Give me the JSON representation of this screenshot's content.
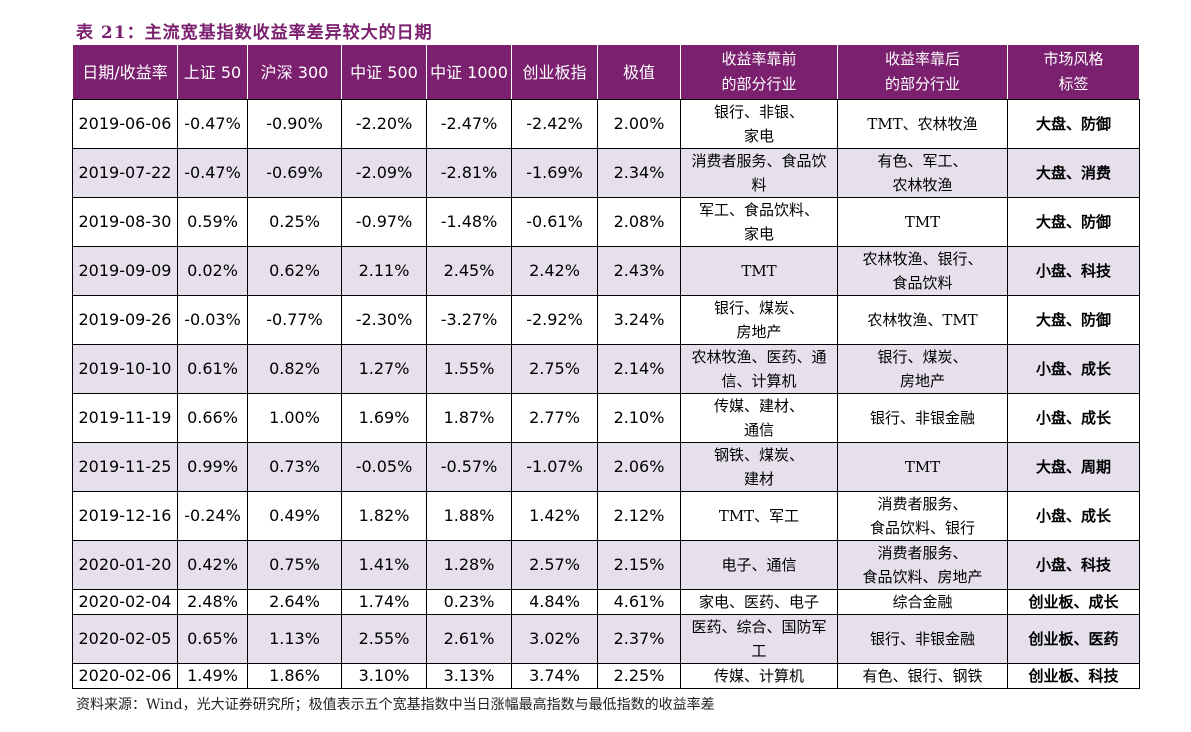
{
  "title": "表 21：主流宽基指数收益率差异较大的日期",
  "headers": [
    "日期/收益率",
    "上证 50",
    "沪深 300",
    "中证 500",
    "中证 1000",
    "创业板指",
    "极值",
    "收益率靠前\n的部分行业",
    "收益率靠后\n的部分行业",
    "市场风格\n标签"
  ],
  "rows": [
    {
      "date": "2019-06-06",
      "sz50": "-0.47%",
      "hs300": "-0.90%",
      "zz500": "-2.20%",
      "zz1000": "-2.47%",
      "cyb": "-2.42%",
      "extreme": "2.00%",
      "top": "银行、非银、\n家电",
      "bottom": "TMT、农林牧渔",
      "tag": "大盘、防御",
      "shade": false
    },
    {
      "date": "2019-07-22",
      "sz50": "-0.47%",
      "hs300": "-0.69%",
      "zz500": "-2.09%",
      "zz1000": "-2.81%",
      "cyb": "-1.69%",
      "extreme": "2.34%",
      "top": "消费者服务、食品饮\n料",
      "bottom": "有色、军工、\n农林牧渔",
      "tag": "大盘、消费",
      "shade": true
    },
    {
      "date": "2019-08-30",
      "sz50": "0.59%",
      "hs300": "0.25%",
      "zz500": "-0.97%",
      "zz1000": "-1.48%",
      "cyb": "-0.61%",
      "extreme": "2.08%",
      "top": "军工、食品饮料、\n家电",
      "bottom": "TMT",
      "tag": "大盘、防御",
      "shade": false
    },
    {
      "date": "2019-09-09",
      "sz50": "0.02%",
      "hs300": "0.62%",
      "zz500": "2.11%",
      "zz1000": "2.45%",
      "cyb": "2.42%",
      "extreme": "2.43%",
      "top": "TMT",
      "bottom": "农林牧渔、银行、\n食品饮料",
      "tag": "小盘、科技",
      "shade": true
    },
    {
      "date": "2019-09-26",
      "sz50": "-0.03%",
      "hs300": "-0.77%",
      "zz500": "-2.30%",
      "zz1000": "-3.27%",
      "cyb": "-2.92%",
      "extreme": "3.24%",
      "top": "银行、煤炭、\n房地产",
      "bottom": "农林牧渔、TMT",
      "tag": "大盘、防御",
      "shade": false
    },
    {
      "date": "2019-10-10",
      "sz50": "0.61%",
      "hs300": "0.82%",
      "zz500": "1.27%",
      "zz1000": "1.55%",
      "cyb": "2.75%",
      "extreme": "2.14%",
      "top": "农林牧渔、医药、通\n信、计算机",
      "bottom": "银行、煤炭、\n房地产",
      "tag": "小盘、成长",
      "shade": true
    },
    {
      "date": "2019-11-19",
      "sz50": "0.66%",
      "hs300": "1.00%",
      "zz500": "1.69%",
      "zz1000": "1.87%",
      "cyb": "2.77%",
      "extreme": "2.10%",
      "top": "传媒、建材、\n通信",
      "bottom": "银行、非银金融",
      "tag": "小盘、成长",
      "shade": false
    },
    {
      "date": "2019-11-25",
      "sz50": "0.99%",
      "hs300": "0.73%",
      "zz500": "-0.05%",
      "zz1000": "-0.57%",
      "cyb": "-1.07%",
      "extreme": "2.06%",
      "top": "钢铁、煤炭、\n建材",
      "bottom": "TMT",
      "tag": "大盘、周期",
      "shade": true
    },
    {
      "date": "2019-12-16",
      "sz50": "-0.24%",
      "hs300": "0.49%",
      "zz500": "1.82%",
      "zz1000": "1.88%",
      "cyb": "1.42%",
      "extreme": "2.12%",
      "top": "TMT、军工",
      "bottom": "消费者服务、\n食品饮料、银行",
      "tag": "小盘、成长",
      "shade": false
    },
    {
      "date": "2020-01-20",
      "sz50": "0.42%",
      "hs300": "0.75%",
      "zz500": "1.41%",
      "zz1000": "1.28%",
      "cyb": "2.57%",
      "extreme": "2.15%",
      "top": "电子、通信",
      "bottom": "消费者服务、\n食品饮料、房地产",
      "tag": "小盘、科技",
      "shade": true
    },
    {
      "date": "2020-02-04",
      "sz50": "2.48%",
      "hs300": "2.64%",
      "zz500": "1.74%",
      "zz1000": "0.23%",
      "cyb": "4.84%",
      "extreme": "4.61%",
      "top": "家电、医药、电子",
      "bottom": "综合金融",
      "tag": "创业板、成长",
      "shade": false,
      "short": true
    },
    {
      "date": "2020-02-05",
      "sz50": "0.65%",
      "hs300": "1.13%",
      "zz500": "2.55%",
      "zz1000": "2.61%",
      "cyb": "3.02%",
      "extreme": "2.37%",
      "top": "医药、综合、国防军\n工",
      "bottom": "银行、非银金融",
      "tag": "创业板、医药",
      "shade": true
    },
    {
      "date": "2020-02-06",
      "sz50": "1.49%",
      "hs300": "1.86%",
      "zz500": "3.10%",
      "zz1000": "3.13%",
      "cyb": "3.74%",
      "extreme": "2.25%",
      "top": "传媒、计算机",
      "bottom": "有色、银行、钢铁",
      "tag": "创业板、科技",
      "shade": false,
      "short": true
    }
  ],
  "footnote": "资料来源：Wind，光大证券研究所；极值表示五个宽基指数中当日涨幅最高指数与最低指数的收益率差",
  "colors": {
    "header_bg": "#7b1f6f",
    "title": "#7b1f6f",
    "row_shade": "#e5e0ec"
  }
}
